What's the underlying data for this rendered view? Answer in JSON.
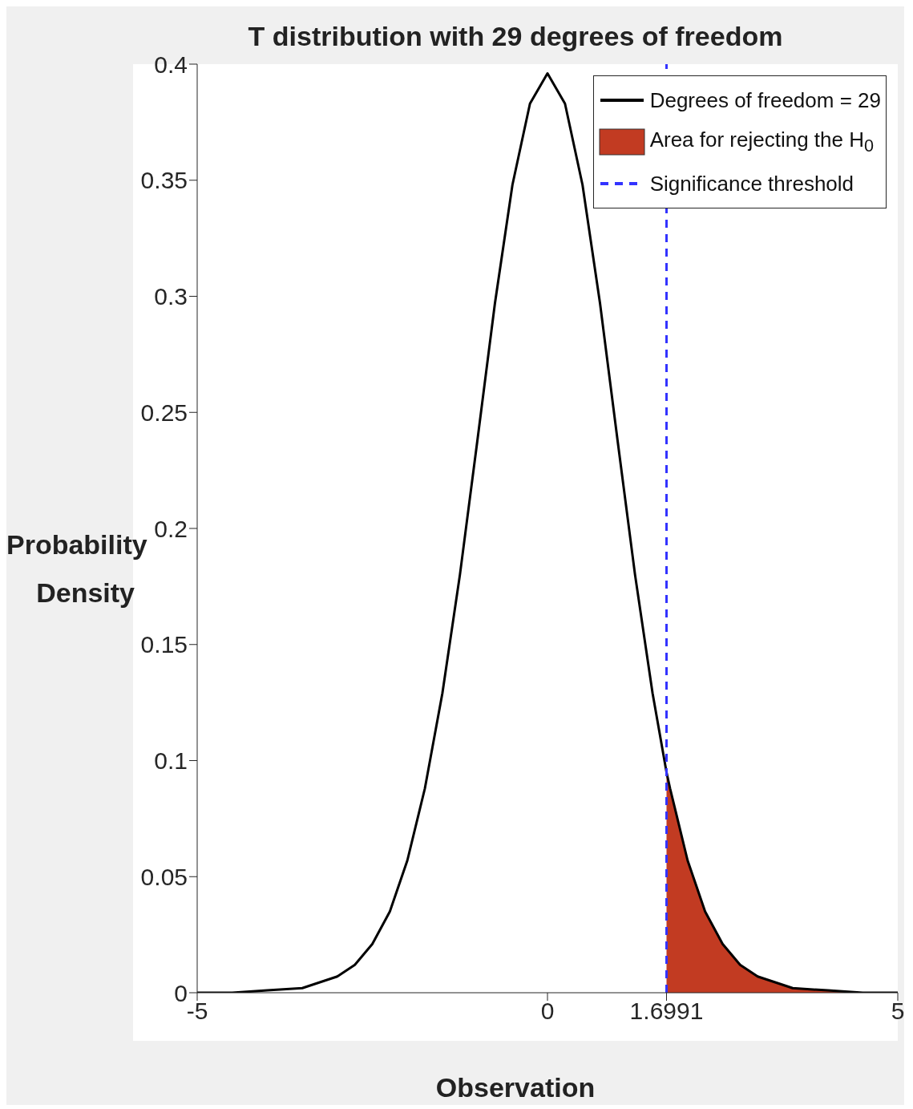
{
  "chart_data": {
    "type": "line",
    "title": "T distribution with 29 degrees of freedom",
    "xlabel": "Observation",
    "ylabel": "Probability Density",
    "xlim": [
      -5,
      5
    ],
    "xticks": [
      -5,
      0,
      1.6991,
      5
    ],
    "ylim": [
      0,
      0.4
    ],
    "yticks": [
      0,
      0.05,
      0.1,
      0.15,
      0.2,
      0.25,
      0.3,
      0.35,
      0.4
    ],
    "grid": false,
    "legend": "top right",
    "marker": "none",
    "series": [
      {
        "name": "Degrees of freedom = 29",
        "color": "#000000",
        "line_style": "solid",
        "x": [
          -5,
          -4.5,
          -4,
          -3.5,
          -3,
          -2.75,
          -2.5,
          -2.25,
          -2,
          -1.75,
          -1.5,
          -1.25,
          -1,
          -0.75,
          -0.5,
          -0.25,
          0,
          0.25,
          0.5,
          0.75,
          1,
          1.25,
          1.5,
          1.6991,
          1.75,
          2,
          2.25,
          2.5,
          2.75,
          3,
          3.5,
          4,
          4.5,
          5
        ],
        "values": [
          0,
          0,
          0.001,
          0.002,
          0.007,
          0.012,
          0.021,
          0.035,
          0.057,
          0.088,
          0.129,
          0.18,
          0.238,
          0.297,
          0.348,
          0.383,
          0.396,
          0.383,
          0.348,
          0.297,
          0.238,
          0.18,
          0.129,
          0.095,
          0.088,
          0.057,
          0.035,
          0.021,
          0.012,
          0.007,
          0.002,
          0.001,
          0,
          0
        ]
      },
      {
        "type": "area",
        "name": "Area for rejecting the H$_{0}$",
        "color": "#c23b22",
        "x": [
          1.6991,
          1.75,
          2,
          2.25,
          2.5,
          2.75,
          3,
          3.5,
          4,
          4.5,
          5
        ],
        "values": [
          0.095,
          0.088,
          0.057,
          0.035,
          0.021,
          0.012,
          0.007,
          0.002,
          0.001,
          0,
          0
        ]
      }
    ],
    "ref_lines": [
      {
        "axis": "x",
        "value": 1.6991,
        "label": "Significance threshold",
        "color": "#3333ff",
        "line_style": "dashed"
      }
    ]
  }
}
